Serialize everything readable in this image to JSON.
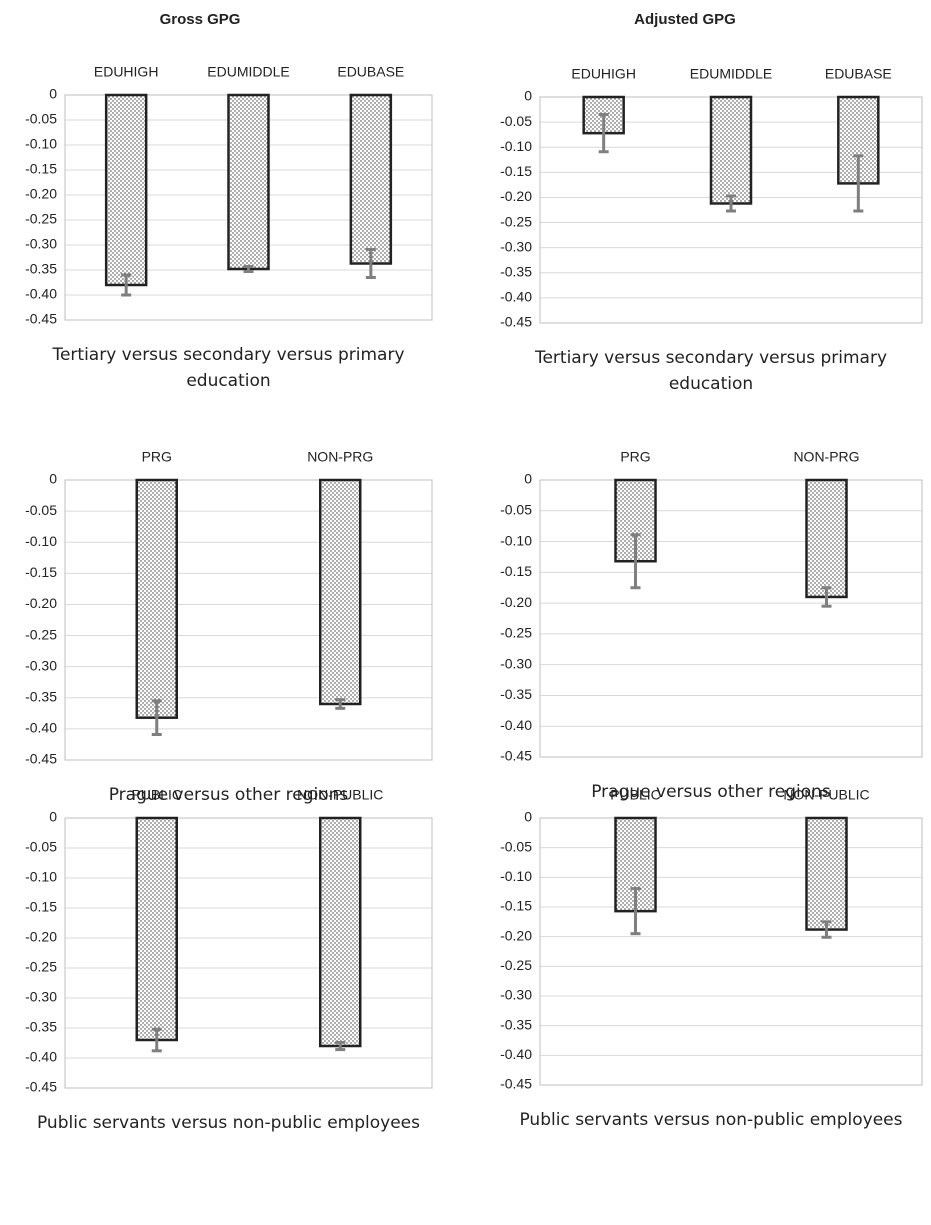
{
  "column_titles": [
    "Gross GPG",
    "Adjusted GPG"
  ],
  "chart_data": [
    {
      "type": "bar",
      "xlabel": "Tertiary versus secondary versus primary education",
      "categories": [
        "EDUHIGH",
        "EDUMIDDLE",
        "EDUBASE"
      ],
      "values": [
        -0.38,
        -0.348,
        -0.337
      ],
      "errors": [
        0.02,
        0.005,
        0.028
      ],
      "ylim": [
        -0.45,
        0
      ],
      "yticks": [
        0,
        -0.05,
        {
          "value": -0.1,
          "label": "-0.10"
        },
        -0.15,
        {
          "value": -0.2,
          "label": "-0.20"
        },
        -0.25,
        {
          "value": -0.3,
          "label": "-0.30"
        },
        -0.35,
        {
          "value": -0.4,
          "label": "-0.40"
        },
        -0.45
      ],
      "grid": true
    },
    {
      "type": "bar",
      "xlabel": "Tertiary versus secondary versus primary education",
      "categories": [
        "EDUHIGH",
        "EDUMIDDLE",
        "EDUBASE"
      ],
      "values": [
        -0.072,
        -0.212,
        -0.172
      ],
      "errors": [
        0.037,
        0.015,
        0.055
      ],
      "ylim": [
        -0.45,
        0
      ],
      "yticks": [
        0,
        -0.05,
        {
          "value": -0.1,
          "label": "-0.10"
        },
        -0.15,
        {
          "value": -0.2,
          "label": "-0.20"
        },
        -0.25,
        {
          "value": -0.3,
          "label": "-0.30"
        },
        -0.35,
        {
          "value": -0.4,
          "label": "-0.40"
        },
        -0.45
      ],
      "grid": true
    },
    {
      "type": "bar",
      "xlabel": "Prague versus other regions",
      "categories": [
        "PRG",
        "NON-PRG"
      ],
      "values": [
        -0.382,
        -0.36
      ],
      "errors": [
        0.027,
        0.007
      ],
      "ylim": [
        -0.45,
        0
      ],
      "yticks": [
        0,
        -0.05,
        {
          "value": -0.1,
          "label": "-0.10"
        },
        -0.15,
        {
          "value": -0.2,
          "label": "-0.20"
        },
        -0.25,
        {
          "value": -0.3,
          "label": "-0.30"
        },
        -0.35,
        {
          "value": -0.4,
          "label": "-0.40"
        },
        -0.45
      ],
      "grid": true
    },
    {
      "type": "bar",
      "xlabel": "Prague versus other regions",
      "categories": [
        "PRG",
        "NON-PRG"
      ],
      "values": [
        -0.132,
        -0.19
      ],
      "errors": [
        0.043,
        0.015
      ],
      "ylim": [
        -0.45,
        0
      ],
      "yticks": [
        0,
        -0.05,
        {
          "value": -0.1,
          "label": "-0.10"
        },
        -0.15,
        {
          "value": -0.2,
          "label": "-0.20"
        },
        -0.25,
        {
          "value": -0.3,
          "label": "-0.30"
        },
        -0.35,
        {
          "value": -0.4,
          "label": "-0.40"
        },
        -0.45
      ],
      "grid": true
    },
    {
      "type": "bar",
      "xlabel": "Public servants versus non-public employees",
      "categories": [
        "PUBLIC",
        "NON-PUBLIC"
      ],
      "values": [
        -0.37,
        -0.38
      ],
      "errors": [
        0.018,
        0.006
      ],
      "ylim": [
        -0.45,
        0
      ],
      "yticks": [
        0,
        -0.05,
        {
          "value": -0.1,
          "label": "-0.10"
        },
        -0.15,
        {
          "value": -0.2,
          "label": "-0.20"
        },
        -0.25,
        {
          "value": -0.3,
          "label": "-0.30"
        },
        -0.35,
        {
          "value": -0.4,
          "label": "-0.40"
        },
        -0.45
      ],
      "grid": true
    },
    {
      "type": "bar",
      "xlabel": "Public servants versus non-public employees",
      "categories": [
        "PUBLIC",
        "NON-PUBLIC"
      ],
      "values": [
        -0.157,
        -0.188
      ],
      "errors": [
        0.038,
        0.013
      ],
      "ylim": [
        -0.45,
        0
      ],
      "yticks": [
        0,
        -0.05,
        {
          "value": -0.1,
          "label": "-0.10"
        },
        -0.15,
        {
          "value": -0.2,
          "label": "-0.20"
        },
        -0.25,
        {
          "value": -0.3,
          "label": "-0.30"
        },
        -0.35,
        {
          "value": -0.4,
          "label": "-0.40"
        },
        -0.45
      ],
      "grid": true
    }
  ]
}
